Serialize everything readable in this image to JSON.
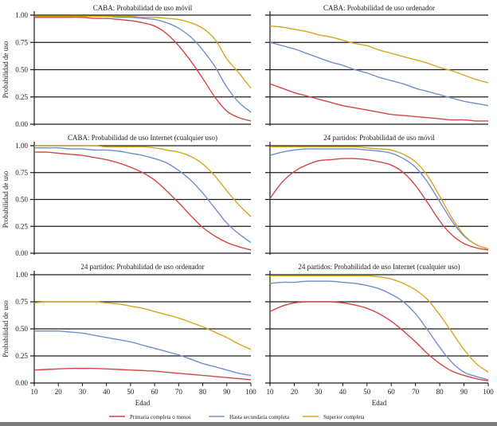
{
  "chart_data": {
    "type": "line",
    "layout": "3x2 grid of small multiples",
    "x": [
      10,
      15,
      20,
      25,
      30,
      35,
      40,
      45,
      50,
      55,
      60,
      65,
      70,
      75,
      80,
      85,
      90,
      95,
      100
    ],
    "xlabel": "Edad",
    "ylabel": "Probabilidad de uso",
    "xlim": [
      10,
      100
    ],
    "ylim": [
      0,
      1
    ],
    "xticks": [
      "10",
      "20",
      "30",
      "40",
      "50",
      "60",
      "70",
      "80",
      "90",
      "100"
    ],
    "yticks": [
      "0.00",
      "0.25",
      "0.50",
      "0.75",
      "1.00"
    ],
    "grid": "horizontal",
    "legend": {
      "placement": "bottom",
      "entries": [
        {
          "name": "Primaria completa o menos",
          "color": "#d64545"
        },
        {
          "name": "Hasta secundaria completa",
          "color": "#6f8fce"
        },
        {
          "name": "Superior completa",
          "color": "#d8a521"
        }
      ]
    },
    "panels": [
      {
        "title": "CABA: Probabilidad de uso móvil",
        "series": [
          {
            "name": "Primaria completa o menos",
            "values": [
              0.98,
              0.98,
              0.98,
              0.98,
              0.98,
              0.97,
              0.97,
              0.96,
              0.95,
              0.93,
              0.9,
              0.83,
              0.72,
              0.58,
              0.42,
              0.25,
              0.12,
              0.06,
              0.03
            ]
          },
          {
            "name": "Hasta secundaria completa",
            "values": [
              0.99,
              0.99,
              0.99,
              0.99,
              0.99,
              0.99,
              0.99,
              0.98,
              0.98,
              0.97,
              0.96,
              0.93,
              0.88,
              0.8,
              0.68,
              0.53,
              0.34,
              0.2,
              0.11
            ]
          },
          {
            "name": "Superior completa",
            "values": [
              0.99,
              0.99,
              0.99,
              0.99,
              0.99,
              0.99,
              0.99,
              0.99,
              0.99,
              0.98,
              0.98,
              0.97,
              0.96,
              0.93,
              0.88,
              0.78,
              0.6,
              0.47,
              0.33
            ]
          }
        ]
      },
      {
        "title": "CABA: Probabilidad de uso ordenador",
        "series": [
          {
            "name": "Primaria completa o menos",
            "values": [
              0.37,
              0.33,
              0.29,
              0.26,
              0.23,
              0.2,
              0.17,
              0.15,
              0.13,
              0.11,
              0.09,
              0.08,
              0.07,
              0.06,
              0.05,
              0.04,
              0.04,
              0.03,
              0.03
            ]
          },
          {
            "name": "Hasta secundaria completa",
            "values": [
              0.75,
              0.72,
              0.69,
              0.65,
              0.61,
              0.57,
              0.54,
              0.5,
              0.47,
              0.43,
              0.4,
              0.37,
              0.33,
              0.3,
              0.27,
              0.24,
              0.21,
              0.19,
              0.17
            ]
          },
          {
            "name": "Superior completa",
            "values": [
              0.9,
              0.89,
              0.87,
              0.85,
              0.82,
              0.8,
              0.77,
              0.74,
              0.72,
              0.68,
              0.65,
              0.62,
              0.59,
              0.56,
              0.52,
              0.49,
              0.45,
              0.41,
              0.38
            ]
          }
        ]
      },
      {
        "title": "CABA: Probabilidad de uso Internet (cualquier uso)",
        "series": [
          {
            "name": "Primaria completa o menos",
            "values": [
              0.94,
              0.94,
              0.93,
              0.92,
              0.91,
              0.89,
              0.87,
              0.84,
              0.8,
              0.75,
              0.68,
              0.58,
              0.47,
              0.35,
              0.24,
              0.16,
              0.1,
              0.06,
              0.03
            ]
          },
          {
            "name": "Hasta secundaria completa",
            "values": [
              0.98,
              0.98,
              0.98,
              0.97,
              0.97,
              0.96,
              0.96,
              0.95,
              0.93,
              0.91,
              0.88,
              0.84,
              0.77,
              0.68,
              0.56,
              0.42,
              0.28,
              0.18,
              0.1
            ]
          },
          {
            "name": "Superior completa",
            "values": [
              1.0,
              1.0,
              1.0,
              1.0,
              1.0,
              1.0,
              0.99,
              0.99,
              0.99,
              0.99,
              0.98,
              0.96,
              0.94,
              0.9,
              0.83,
              0.72,
              0.58,
              0.45,
              0.34
            ]
          }
        ]
      },
      {
        "title": "24 partidos: Probabilidad de uso móvil",
        "series": [
          {
            "name": "Primaria completa o menos",
            "values": [
              0.51,
              0.66,
              0.76,
              0.82,
              0.86,
              0.87,
              0.88,
              0.88,
              0.87,
              0.85,
              0.82,
              0.75,
              0.63,
              0.47,
              0.3,
              0.17,
              0.09,
              0.05,
              0.03
            ]
          },
          {
            "name": "Hasta secundaria completa",
            "values": [
              0.91,
              0.94,
              0.96,
              0.97,
              0.97,
              0.97,
              0.97,
              0.97,
              0.96,
              0.95,
              0.93,
              0.88,
              0.8,
              0.66,
              0.48,
              0.3,
              0.16,
              0.08,
              0.04
            ]
          },
          {
            "name": "Superior completa",
            "values": [
              0.99,
              0.99,
              0.99,
              0.99,
              0.99,
              0.99,
              0.99,
              0.99,
              0.98,
              0.97,
              0.96,
              0.92,
              0.85,
              0.72,
              0.53,
              0.33,
              0.17,
              0.08,
              0.04
            ]
          }
        ]
      },
      {
        "title": "24 partidos: Probabilidad de uso ordenador",
        "series": [
          {
            "name": "Primaria completa o menos",
            "values": [
              0.12,
              0.125,
              0.13,
              0.135,
              0.135,
              0.135,
              0.13,
              0.125,
              0.12,
              0.115,
              0.11,
              0.1,
              0.09,
              0.08,
              0.07,
              0.06,
              0.05,
              0.04,
              0.03
            ]
          },
          {
            "name": "Hasta secundaria completa",
            "values": [
              0.48,
              0.48,
              0.48,
              0.47,
              0.46,
              0.44,
              0.42,
              0.4,
              0.38,
              0.35,
              0.32,
              0.29,
              0.26,
              0.22,
              0.18,
              0.15,
              0.12,
              0.09,
              0.07
            ]
          },
          {
            "name": "Superior completa",
            "values": [
              0.74,
              0.75,
              0.75,
              0.75,
              0.75,
              0.75,
              0.74,
              0.73,
              0.71,
              0.69,
              0.66,
              0.63,
              0.6,
              0.56,
              0.52,
              0.47,
              0.42,
              0.36,
              0.31
            ]
          }
        ]
      },
      {
        "title": "24 partidos: Probabilidad de uso Internet (cualquier uso)",
        "series": [
          {
            "name": "Primaria completa o menos",
            "values": [
              0.66,
              0.71,
              0.74,
              0.75,
              0.75,
              0.75,
              0.74,
              0.72,
              0.69,
              0.64,
              0.57,
              0.48,
              0.38,
              0.27,
              0.18,
              0.11,
              0.07,
              0.04,
              0.02
            ]
          },
          {
            "name": "Hasta secundaria completa",
            "values": [
              0.92,
              0.93,
              0.93,
              0.94,
              0.94,
              0.94,
              0.93,
              0.92,
              0.9,
              0.87,
              0.82,
              0.75,
              0.64,
              0.49,
              0.33,
              0.19,
              0.1,
              0.06,
              0.03
            ]
          },
          {
            "name": "Superior completa",
            "values": [
              0.99,
              0.99,
              0.99,
              0.99,
              0.99,
              0.99,
              0.99,
              0.99,
              0.99,
              0.98,
              0.96,
              0.92,
              0.86,
              0.77,
              0.63,
              0.47,
              0.31,
              0.18,
              0.1
            ]
          }
        ]
      }
    ]
  }
}
